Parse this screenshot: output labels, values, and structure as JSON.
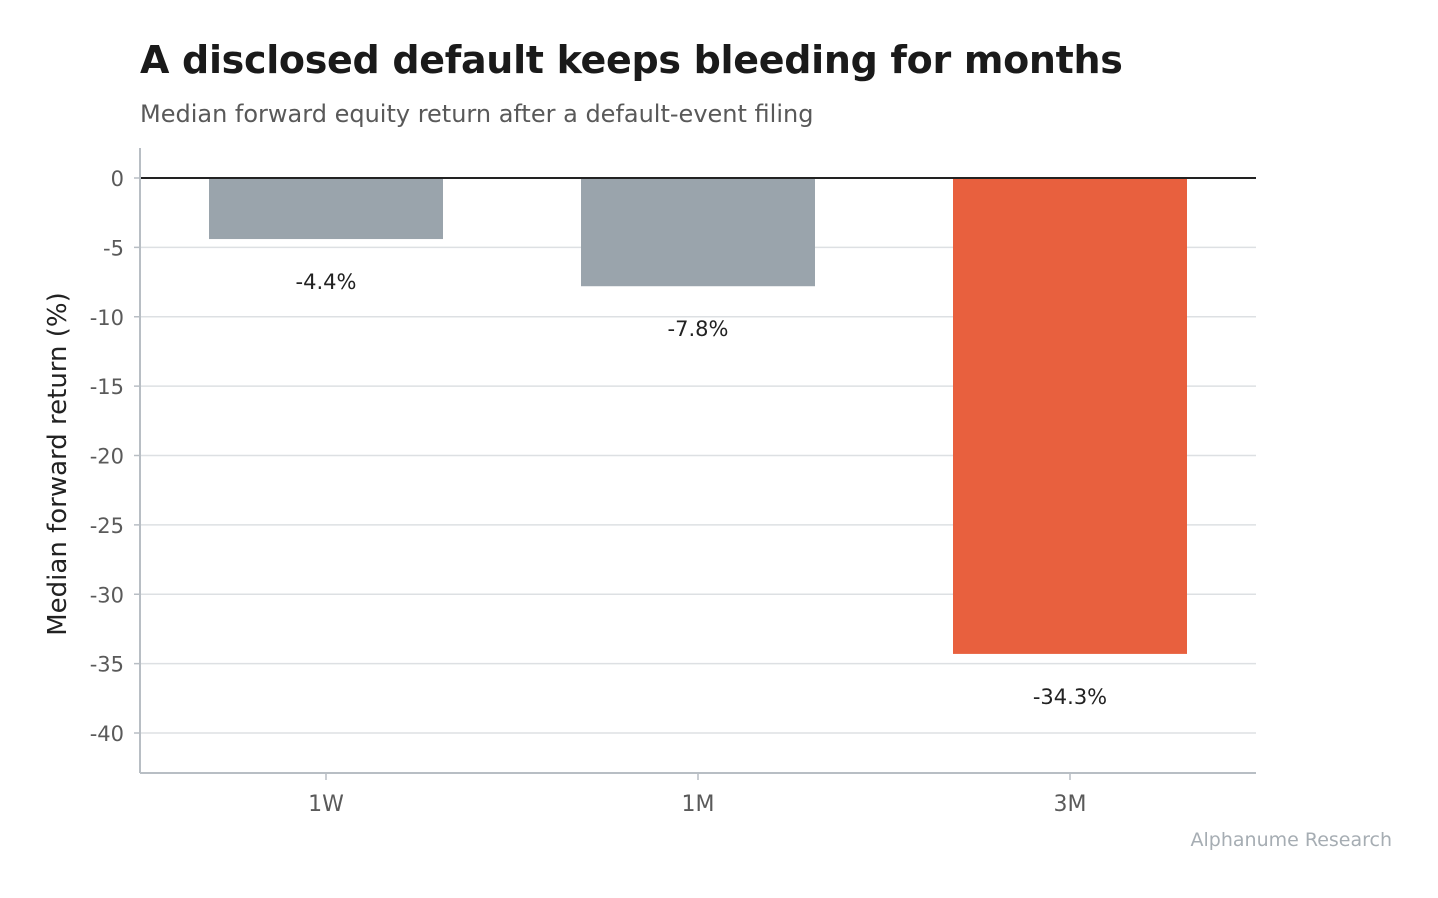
{
  "chart_data": {
    "type": "bar",
    "title": "A disclosed default keeps bleeding for months",
    "subtitle": "Median forward equity return after a default-event filing",
    "xlabel": "",
    "ylabel": "Median forward return (%)",
    "categories": [
      "1W",
      "1M",
      "3M"
    ],
    "values": [
      -4.4,
      -7.8,
      -34.3
    ],
    "value_labels": [
      "-4.4%",
      "-7.8%",
      "-34.3%"
    ],
    "bar_colors": [
      "#9aa4ac",
      "#9aa4ac",
      "#e8603e"
    ],
    "ylim": [
      -43,
      2
    ],
    "yticks": [
      0,
      -5,
      -10,
      -15,
      -20,
      -25,
      -30,
      -35,
      -40
    ],
    "grid": true,
    "legend": "none",
    "source": "Alphanume Research"
  }
}
